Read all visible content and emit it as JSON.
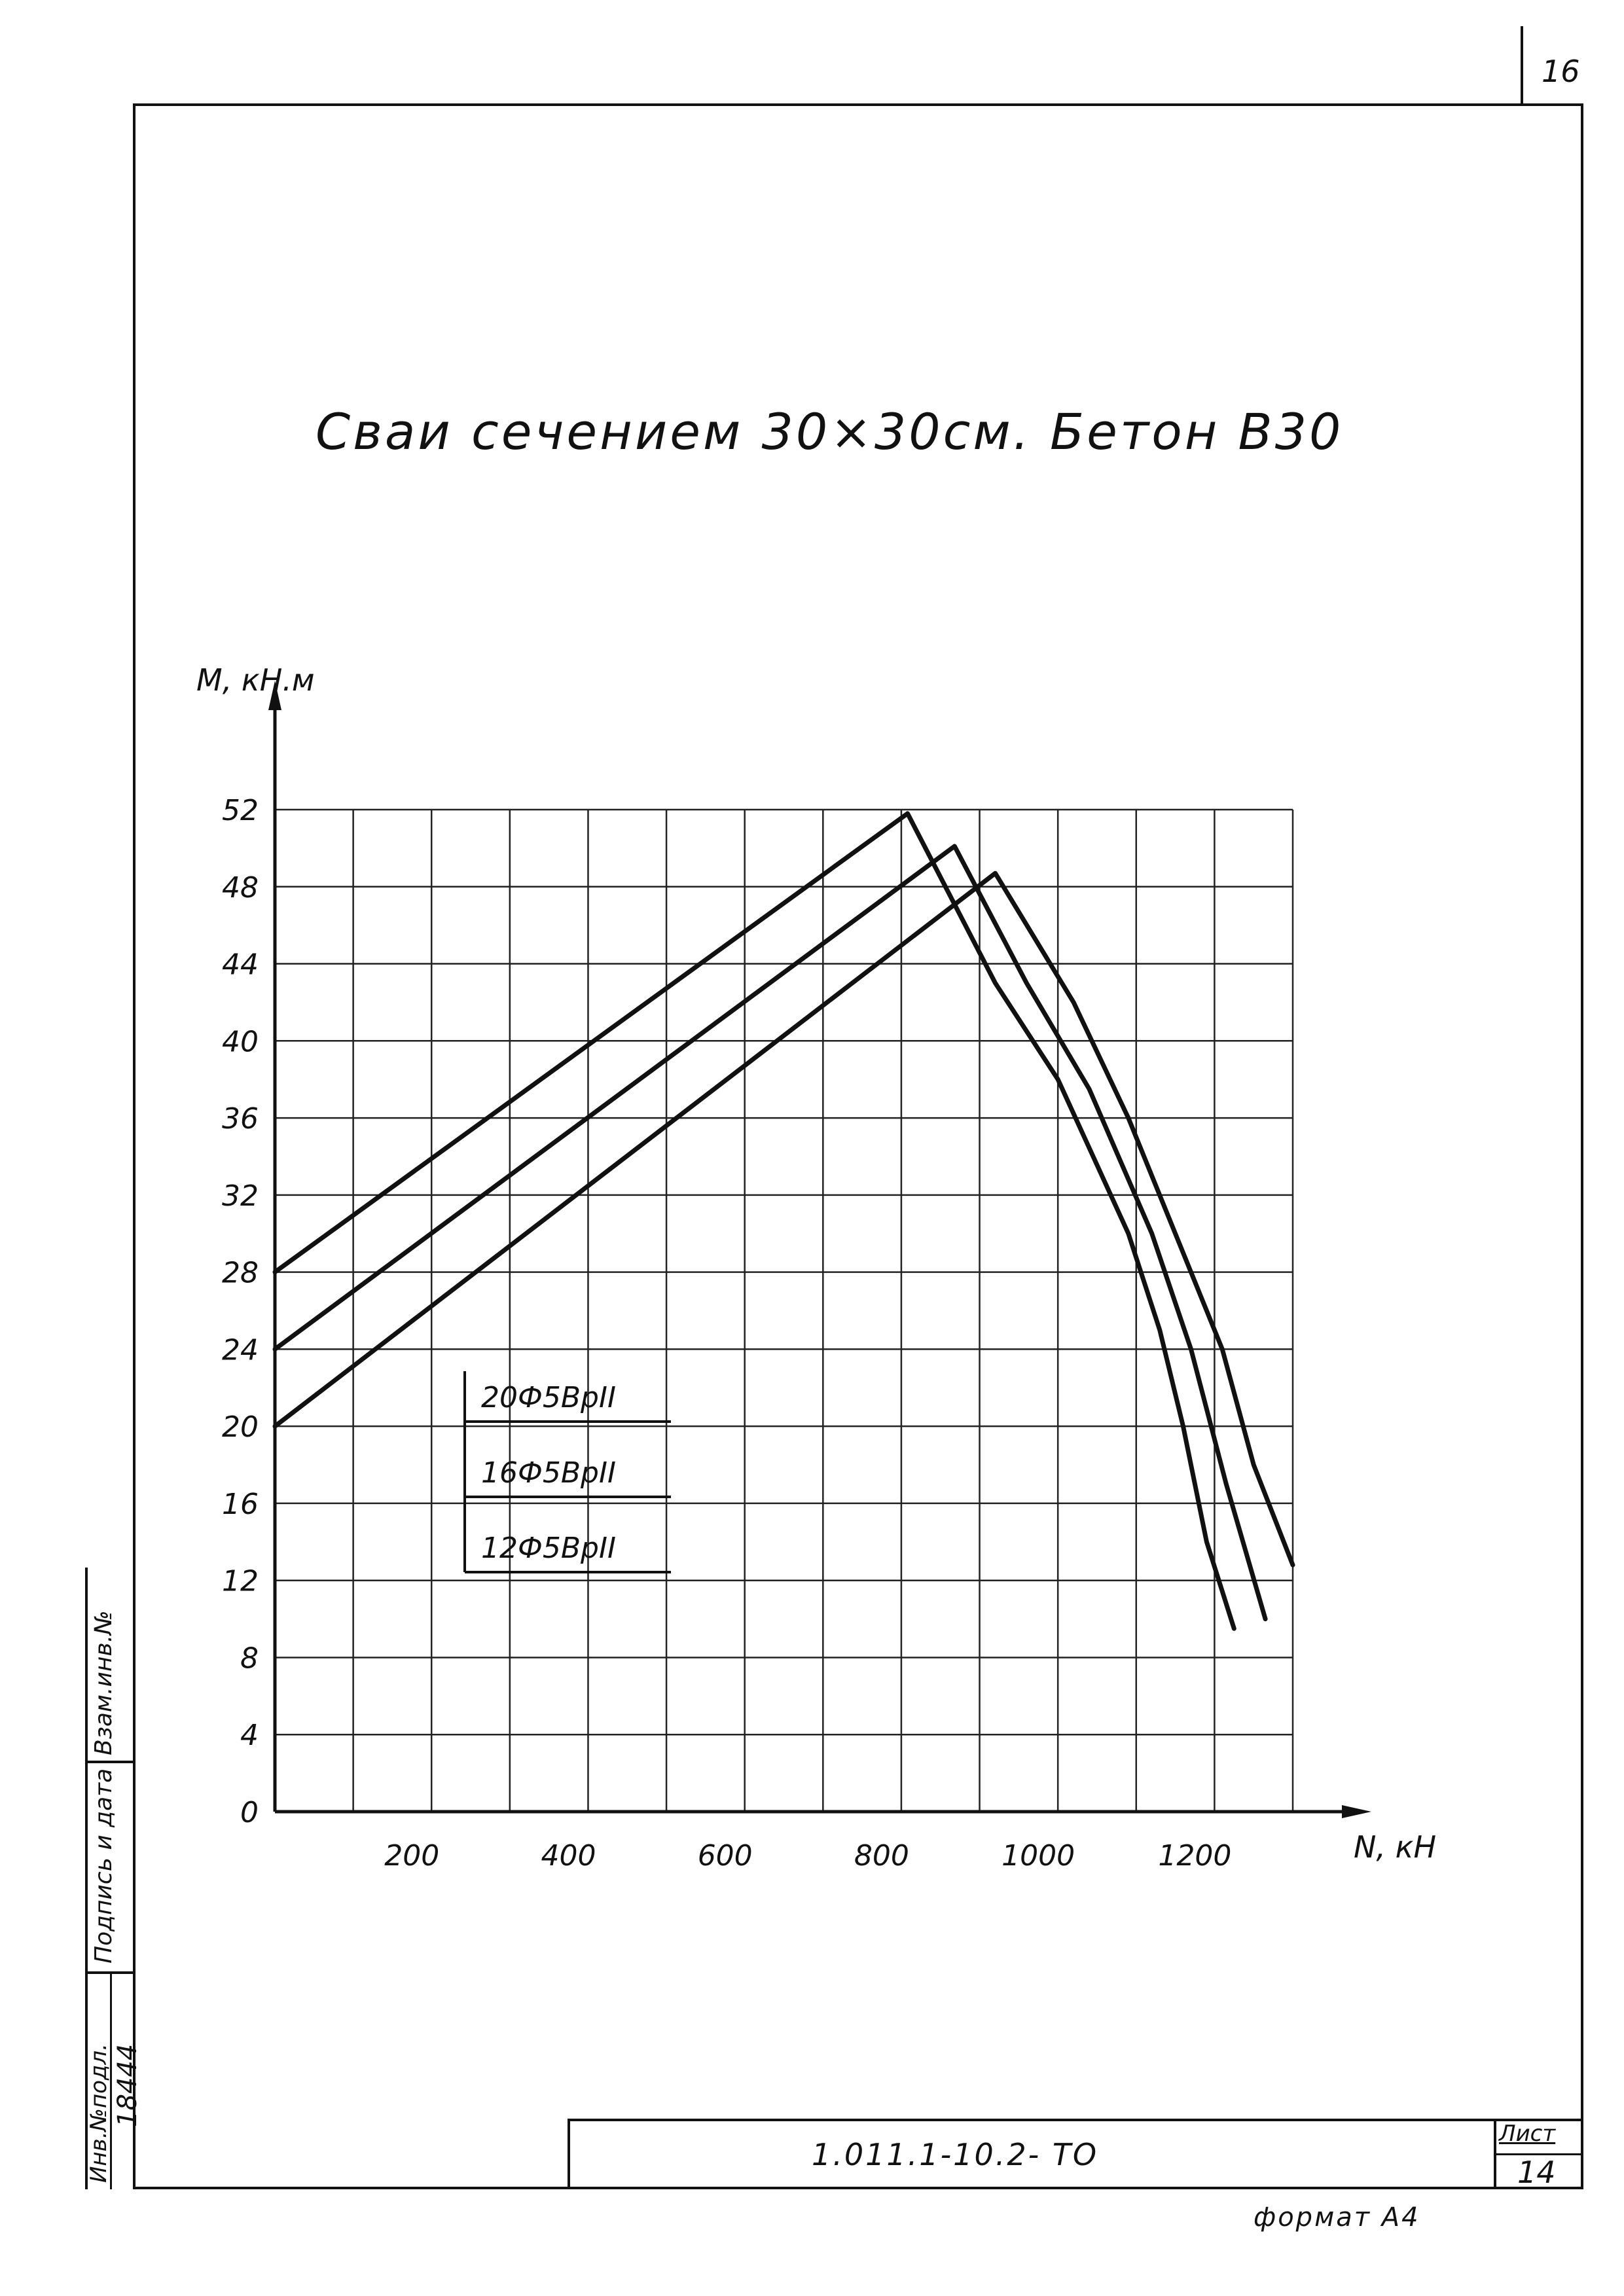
{
  "page": {
    "sheet_number_top": "16",
    "title": "Сваи сечением 30×30см. Бетон В30",
    "stamp": {
      "document_code": "1.011.1-10.2-        ТО",
      "sheet_label": "Лист",
      "sheet_number": "14",
      "format": "формат А4"
    },
    "side_strip": {
      "field_1": "Взам.инв.№",
      "field_2": "Подпись и дата",
      "field_3": "Инв.№подл.",
      "field_3_value": "18444"
    }
  },
  "chart_data": {
    "type": "line",
    "title": "",
    "xlabel": "N, кН",
    "ylabel": "M, кН.м",
    "xlim": [
      0,
      1300
    ],
    "ylim": [
      0,
      52
    ],
    "grid": true,
    "x_ticks": [
      "200",
      "400",
      "600",
      "800",
      "1000",
      "1200"
    ],
    "y_ticks": [
      "0",
      "4",
      "8",
      "12",
      "16",
      "20",
      "24",
      "28",
      "32",
      "36",
      "40",
      "44",
      "48",
      "52"
    ],
    "series": [
      {
        "name": "20Ф5ВрII",
        "points": [
          [
            0,
            28
          ],
          [
            808,
            51.8
          ],
          [
            920,
            43
          ],
          [
            1000,
            38
          ],
          [
            1090,
            30
          ],
          [
            1130,
            25
          ],
          [
            1160,
            20
          ],
          [
            1190,
            14
          ],
          [
            1225,
            9.5
          ]
        ]
      },
      {
        "name": "16Ф5ВрII",
        "points": [
          [
            0,
            24
          ],
          [
            868,
            50.1
          ],
          [
            960,
            43
          ],
          [
            1040,
            37.5
          ],
          [
            1120,
            30
          ],
          [
            1170,
            24
          ],
          [
            1215,
            17
          ],
          [
            1265,
            10
          ]
        ]
      },
      {
        "name": "12Ф5ВрII",
        "points": [
          [
            0,
            20
          ],
          [
            920,
            48.7
          ],
          [
            1020,
            42
          ],
          [
            1090,
            36
          ],
          [
            1160,
            29
          ],
          [
            1210,
            24
          ],
          [
            1250,
            18
          ],
          [
            1300,
            12.8
          ]
        ]
      }
    ]
  }
}
